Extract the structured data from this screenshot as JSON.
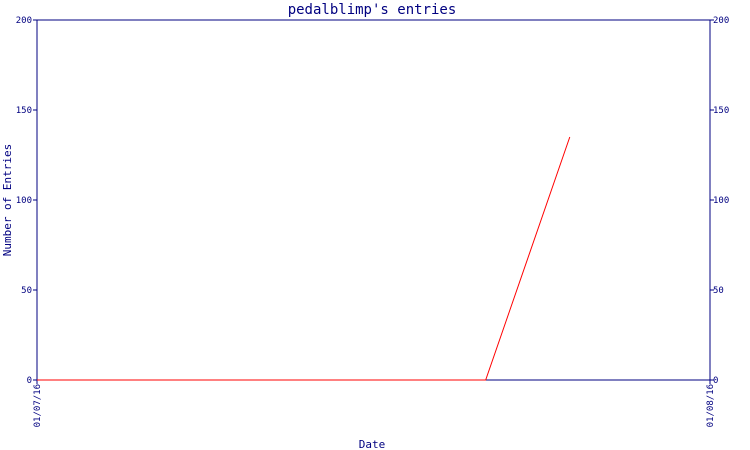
{
  "chart_data": {
    "type": "line",
    "title": "pedalblimp's entries",
    "xlabel": "Date",
    "ylabel": "Number of Entries",
    "x_tick_labels": [
      "01/07/16",
      "01/08/16"
    ],
    "x_range": [
      "01/07/16",
      "01/08/16"
    ],
    "y_ticks": [
      0,
      50,
      100,
      150,
      200
    ],
    "y_tick_labels": [
      "0",
      "50",
      "100",
      "150",
      "200"
    ],
    "ylim": [
      0,
      200
    ],
    "right_axis": true,
    "grid": false,
    "series": [
      {
        "color": "#ff0000",
        "points": [
          {
            "x": "01/07/16",
            "y": 0
          },
          {
            "x": "01/07/16 16:00",
            "y": 0
          },
          {
            "x": "01/07/16 19:00",
            "y": 135
          }
        ]
      }
    ]
  },
  "colors": {
    "axis": "#000080",
    "series": "#ff0000",
    "background": "#ffffff"
  }
}
